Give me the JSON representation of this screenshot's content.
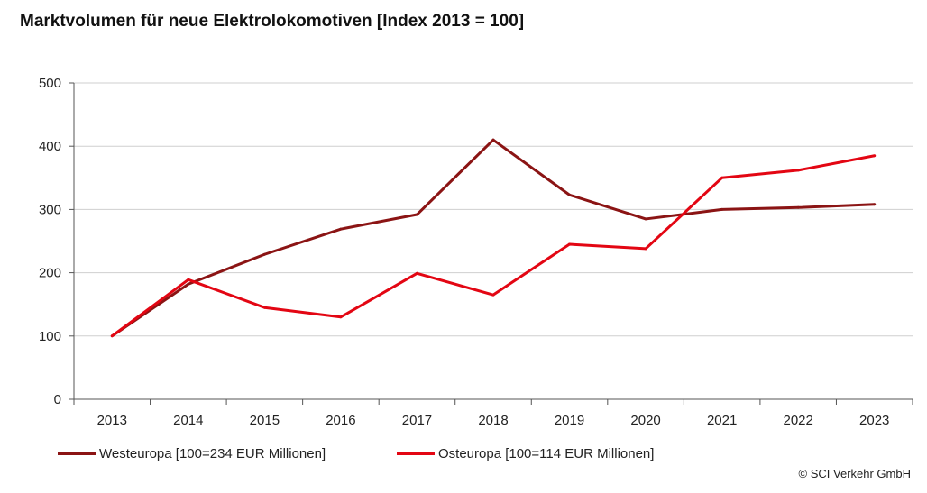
{
  "chart_data": {
    "type": "line",
    "title": "Marktvolumen für neue Elektrolokomotiven [Index 2013 = 100]",
    "xlabel": "",
    "ylabel": "",
    "categories": [
      "2013",
      "2014",
      "2015",
      "2016",
      "2017",
      "2018",
      "2019",
      "2020",
      "2021",
      "2022",
      "2023"
    ],
    "ylim": [
      0,
      500
    ],
    "yticks": [
      "0",
      "100",
      "200",
      "300",
      "400",
      "500"
    ],
    "grid": true,
    "legend_position": "bottom-left",
    "series": [
      {
        "name": "Westeuropa [100=234 EUR Millionen]",
        "color": "#8b1414",
        "values": [
          100,
          182,
          229,
          269,
          292,
          410,
          323,
          285,
          300,
          303,
          308
        ]
      },
      {
        "name": "Osteuropa [100=114 EUR Millionen]",
        "color": "#e30613",
        "values": [
          100,
          189,
          145,
          130,
          199,
          165,
          245,
          238,
          350,
          362,
          385
        ]
      }
    ],
    "source": "© SCI Verkehr GmbH"
  }
}
